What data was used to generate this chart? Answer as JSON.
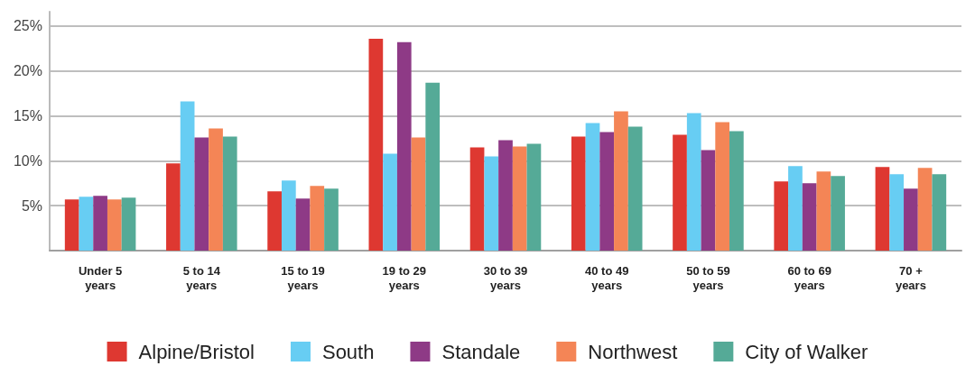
{
  "chart_data": {
    "type": "bar",
    "categories": [
      "Under 5\nyears",
      "5 to 14\nyears",
      "15 to 19\nyears",
      "19 to 29\nyears",
      "30 to 39\nyears",
      "40 to 49\nyears",
      "50 to 59\nyears",
      "60 to 69\nyears",
      "70 +\nyears"
    ],
    "series": [
      {
        "name": "Alpine/Bristol",
        "color": "#de3831",
        "values": [
          5.7,
          9.7,
          6.6,
          23.6,
          11.5,
          12.7,
          12.9,
          7.7,
          9.3
        ]
      },
      {
        "name": "South",
        "color": "#67cdf3",
        "values": [
          6.0,
          16.6,
          7.8,
          10.8,
          10.5,
          14.2,
          15.3,
          9.4,
          8.5
        ]
      },
      {
        "name": "Standale",
        "color": "#8e3a86",
        "values": [
          6.1,
          12.6,
          5.8,
          23.2,
          12.3,
          13.2,
          11.2,
          7.5,
          6.9
        ]
      },
      {
        "name": "Northwest",
        "color": "#f48556",
        "values": [
          5.7,
          13.6,
          7.2,
          12.6,
          11.6,
          15.5,
          14.3,
          8.8,
          9.2
        ]
      },
      {
        "name": "City of Walker",
        "color": "#55aa97",
        "values": [
          5.9,
          12.7,
          6.9,
          18.7,
          11.9,
          13.8,
          13.3,
          8.3,
          8.5
        ]
      }
    ],
    "ylim": [
      0,
      26.6
    ],
    "yticks": [
      {
        "value": 0,
        "label": null
      },
      {
        "value": 5,
        "label": "5%"
      },
      {
        "value": 10,
        "label": "10%"
      },
      {
        "value": 15,
        "label": "15%"
      },
      {
        "value": 20,
        "label": "20%"
      },
      {
        "value": 25,
        "label": "25%"
      }
    ],
    "grid": "y",
    "legend": "bottom"
  }
}
